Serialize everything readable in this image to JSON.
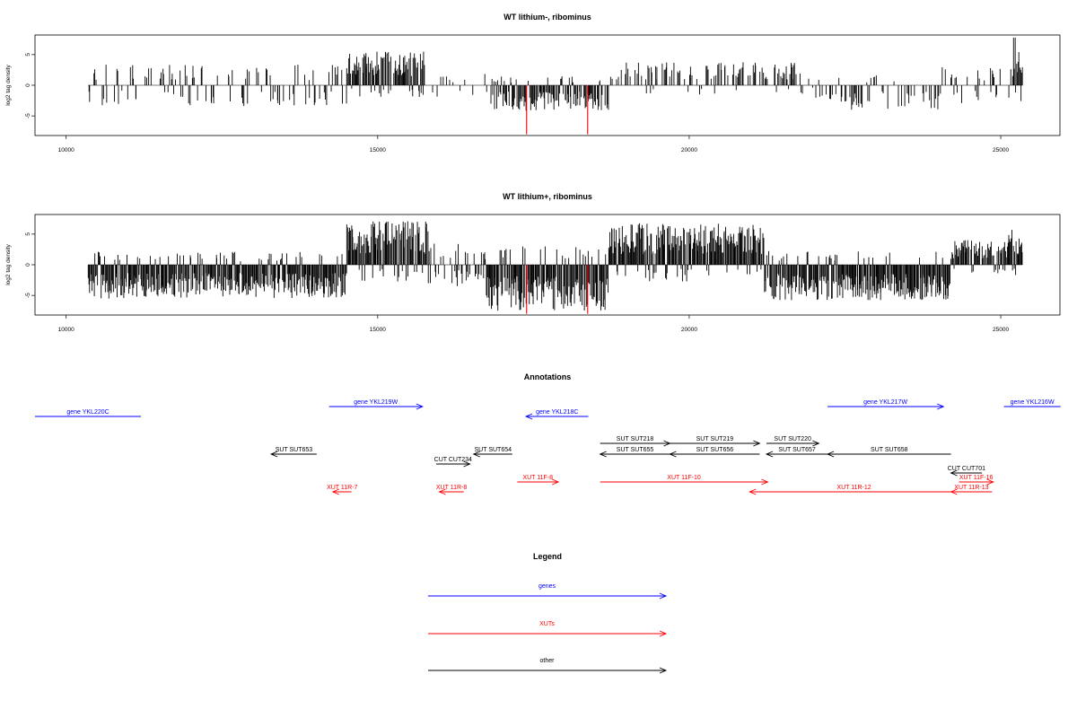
{
  "chart_data": [
    {
      "type": "bar",
      "title": "WT lithium-, ribominus",
      "xlabel": "",
      "ylabel": "log2 tag density",
      "xlim": [
        9500,
        25950
      ],
      "ylim": [
        -8.2,
        8.2
      ],
      "x_ticks": [
        "10000",
        "15000",
        "20000",
        "25000"
      ],
      "y_ticks": [
        "-5",
        "0",
        "5"
      ],
      "grid": false,
      "bar_color": "#000000",
      "highlight_color": "#ff0000",
      "data_range": [
        10350,
        25350
      ],
      "highlights": [
        {
          "x": 17390,
          "y": -8.0
        },
        {
          "x": 18370,
          "y": -8.0
        }
      ],
      "sparse_segments": [
        [
          10350,
          14500,
          0.28,
          -3.4,
          0
        ],
        [
          14500,
          15750,
          0.9,
          5.5,
          1
        ],
        [
          15750,
          16800,
          0.12,
          2.0,
          0
        ],
        [
          16800,
          18700,
          0.75,
          -4.2,
          -1
        ],
        [
          18700,
          22000,
          0.38,
          3.8,
          1
        ],
        [
          22000,
          24000,
          0.34,
          -4.0,
          -1
        ],
        [
          24000,
          25200,
          0.3,
          3.0,
          0
        ],
        [
          25200,
          25350,
          1.0,
          7.9,
          1
        ]
      ]
    },
    {
      "type": "bar",
      "title": "WT lithium+, ribominus",
      "xlabel": "",
      "ylabel": "log2 tag density",
      "xlim": [
        9500,
        25950
      ],
      "ylim": [
        -8.2,
        8.2
      ],
      "x_ticks": [
        "10000",
        "15000",
        "20000",
        "25000"
      ],
      "y_ticks": [
        "-5",
        "0",
        "5"
      ],
      "grid": false,
      "bar_color": "#000000",
      "highlight_color": "#ff0000",
      "data_range": [
        10350,
        25350
      ],
      "highlights": [
        {
          "x": 17390,
          "y": -8.0
        },
        {
          "x": 18370,
          "y": -8.0
        }
      ],
      "sparse_segments": [
        [
          10350,
          14500,
          1.0,
          -5.5,
          -1
        ],
        [
          14500,
          15800,
          1.0,
          7.2,
          1
        ],
        [
          15800,
          16700,
          0.5,
          -3.5,
          0
        ],
        [
          16700,
          18700,
          1.0,
          -7.5,
          -1
        ],
        [
          18700,
          21200,
          1.0,
          6.8,
          1
        ],
        [
          21200,
          24200,
          1.0,
          -5.8,
          -1
        ],
        [
          24200,
          25100,
          0.8,
          4.0,
          1
        ],
        [
          25100,
          25350,
          1.0,
          5.9,
          1
        ]
      ]
    }
  ],
  "annotations": {
    "title": "Annotations",
    "features": [
      {
        "label": "gene YKL220C",
        "start": 9500,
        "end": 11200,
        "strand": "-",
        "row": 0,
        "color": "#0000ff",
        "arrow": false
      },
      {
        "label": "gene YKL219W",
        "start": 14220,
        "end": 15720,
        "strand": "+",
        "row": 1,
        "color": "#0000ff",
        "arrow": true
      },
      {
        "label": "gene YKL218C",
        "start": 17380,
        "end": 18380,
        "strand": "-",
        "row": 0,
        "color": "#0000ff",
        "arrow": true
      },
      {
        "label": "gene YKL217W",
        "start": 22220,
        "end": 24080,
        "strand": "+",
        "row": 1,
        "color": "#0000ff",
        "arrow": true
      },
      {
        "label": "gene YKL216W",
        "start": 25050,
        "end": 25960,
        "strand": "+",
        "row": 1,
        "color": "#0000ff",
        "arrow": false
      },
      {
        "label": "SUT SUT218",
        "start": 18570,
        "end": 19690,
        "strand": "+",
        "row": 2,
        "color": "#000000",
        "arrow": true
      },
      {
        "label": "SUT SUT219",
        "start": 19690,
        "end": 21130,
        "strand": "+",
        "row": 2,
        "color": "#000000",
        "arrow": true
      },
      {
        "label": "SUT SUT220",
        "start": 21240,
        "end": 22080,
        "strand": "+",
        "row": 2,
        "color": "#000000",
        "arrow": true
      },
      {
        "label": "SUT SUT653",
        "start": 13290,
        "end": 14020,
        "strand": "-",
        "row": 3,
        "color": "#000000",
        "arrow": true
      },
      {
        "label": "SUT SUT654",
        "start": 16540,
        "end": 17160,
        "strand": "-",
        "row": 3,
        "color": "#000000",
        "arrow": true
      },
      {
        "label": "SUT SUT655",
        "start": 18570,
        "end": 19690,
        "strand": "-",
        "row": 3,
        "color": "#000000",
        "arrow": true
      },
      {
        "label": "SUT SUT656",
        "start": 19690,
        "end": 21130,
        "strand": "-",
        "row": 3,
        "color": "#000000",
        "arrow": true
      },
      {
        "label": "SUT SUT657",
        "start": 21240,
        "end": 22220,
        "strand": "-",
        "row": 3,
        "color": "#000000",
        "arrow": true
      },
      {
        "label": "SUT SUT658",
        "start": 22220,
        "end": 24200,
        "strand": "-",
        "row": 3,
        "color": "#000000",
        "arrow": true
      },
      {
        "label": "CUT CUT234",
        "start": 15940,
        "end": 16480,
        "strand": "+",
        "row": 4,
        "color": "#000000",
        "arrow": true
      },
      {
        "label": "CUT CUT701",
        "start": 24200,
        "end": 24700,
        "strand": "-",
        "row": 5,
        "color": "#000000",
        "arrow": true
      },
      {
        "label": "XUT 11F-8",
        "start": 17240,
        "end": 17900,
        "strand": "+",
        "row": 6,
        "color": "#ff0000",
        "arrow": true
      },
      {
        "label": "XUT 11F-10",
        "start": 18570,
        "end": 21260,
        "strand": "+",
        "row": 6,
        "color": "#ff0000",
        "arrow": true
      },
      {
        "label": "XUT 11F-16",
        "start": 24330,
        "end": 24880,
        "strand": "+",
        "row": 6,
        "color": "#ff0000",
        "arrow": true
      },
      {
        "label": "XUT 11R-7",
        "start": 14280,
        "end": 14580,
        "strand": "-",
        "row": 7,
        "color": "#ff0000",
        "arrow": true
      },
      {
        "label": "XUT 11R-8",
        "start": 15990,
        "end": 16380,
        "strand": "-",
        "row": 7,
        "color": "#ff0000",
        "arrow": true
      },
      {
        "label": "XUT 11R-12",
        "start": 20970,
        "end": 24320,
        "strand": "-",
        "row": 7,
        "color": "#ff0000",
        "arrow": true
      },
      {
        "label": "XUT 11R-13",
        "start": 24200,
        "end": 24860,
        "strand": "-",
        "row": 7,
        "color": "#ff0000",
        "arrow": true
      }
    ]
  },
  "legend": {
    "title": "Legend",
    "items": [
      {
        "label": "genes",
        "color": "#0000ff"
      },
      {
        "label": "XUTs",
        "color": "#ff0000"
      },
      {
        "label": "other",
        "color": "#000000"
      }
    ]
  }
}
